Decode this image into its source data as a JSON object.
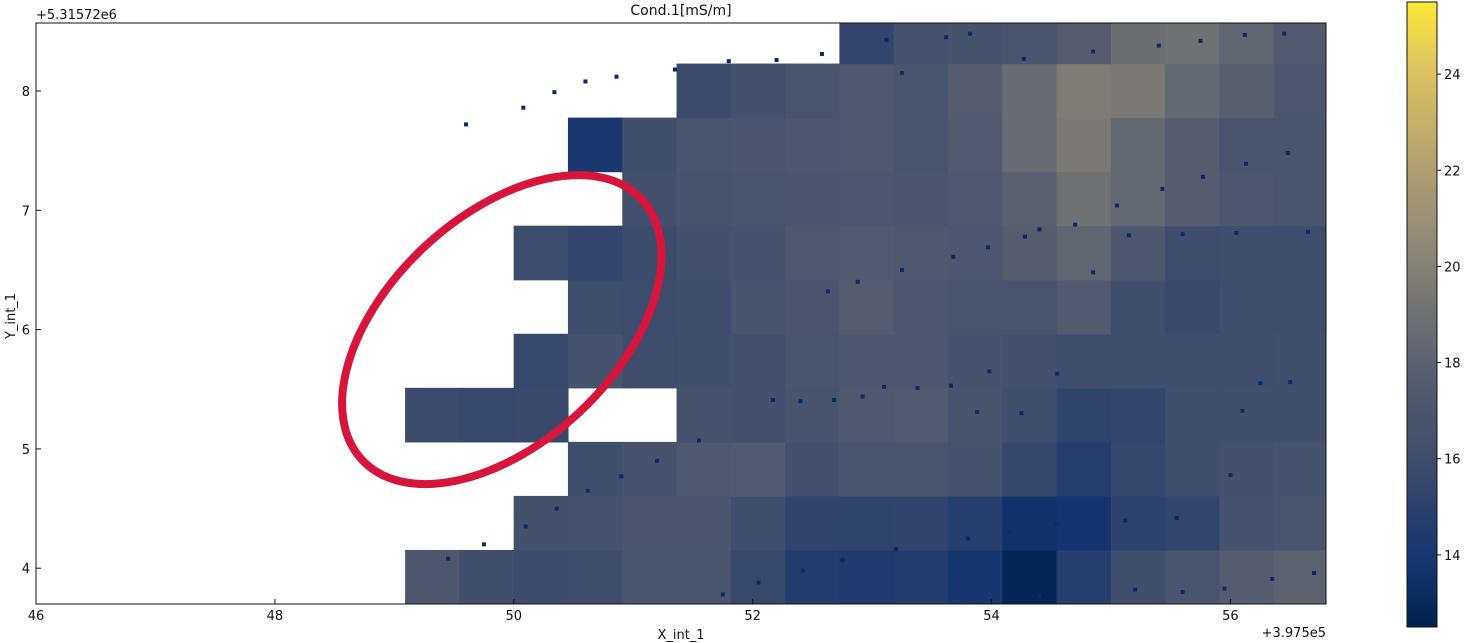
{
  "chart_data": {
    "type": "heatmap",
    "title": "Cond.1[mS/m]",
    "xlabel": "X_int_1",
    "ylabel": "Y_int_1",
    "x_offset_label": "+3.975e5",
    "y_offset_label": "+5.31572e6",
    "xlim": [
      46,
      56.8
    ],
    "ylim": [
      3.7,
      8.57
    ],
    "x_ticks": [
      "46",
      "48",
      "50",
      "52",
      "54",
      "56"
    ],
    "y_ticks": [
      "4",
      "5",
      "6",
      "7",
      "8"
    ],
    "colormap": "cividis",
    "color_range": [
      12.5,
      25.5
    ],
    "colorbar_ticks": [
      "14",
      "16",
      "18",
      "20",
      "22",
      "24"
    ],
    "cells": {
      "x_start": 49.09,
      "y_start": 3.7,
      "dx": 0.4545,
      "dy": 0.453,
      "rows_from_bottom": true,
      "values": [
        [
          17.0,
          16.2,
          15.8,
          16.0,
          16.8,
          16.8,
          15.6,
          14.6,
          14.4,
          14.6,
          14.0,
          12.8,
          14.8,
          16.2,
          16.8,
          17.6,
          18.0,
          17.2,
          17.4
        ],
        [
          null,
          null,
          16.4,
          16.6,
          16.9,
          16.9,
          16.1,
          15.3,
          15.2,
          15.3,
          14.8,
          13.6,
          13.8,
          15.1,
          15.4,
          16.6,
          16.8,
          16.4,
          16.6
        ],
        [
          null,
          null,
          null,
          16.2,
          16.6,
          17.2,
          17.4,
          16.3,
          16.8,
          16.8,
          16.6,
          15.5,
          14.7,
          15.5,
          16.1,
          16.4,
          16.6,
          16.4,
          16.7
        ],
        [
          15.8,
          15.6,
          15.7,
          null,
          null,
          16.5,
          16.4,
          16.7,
          17.2,
          17.4,
          16.7,
          16.1,
          15.2,
          15.4,
          16.2,
          16.2,
          16.2,
          15.8,
          16.4
        ],
        [
          null,
          null,
          15.6,
          16.6,
          16.0,
          16.2,
          16.4,
          16.8,
          17.1,
          17.1,
          16.6,
          16.3,
          16.1,
          16.1,
          16.1,
          16.1,
          16.2,
          16.2,
          16.2
        ],
        [
          null,
          null,
          null,
          16.0,
          15.9,
          16.0,
          16.7,
          16.9,
          17.6,
          17.1,
          16.8,
          16.8,
          17.4,
          16.1,
          15.7,
          16.0,
          16.0,
          16.0,
          16.0
        ],
        [
          null,
          null,
          15.9,
          15.4,
          15.8,
          16.4,
          16.6,
          17.2,
          17.4,
          17.2,
          17.1,
          17.7,
          18.2,
          17.1,
          16.0,
          16.1,
          16.0,
          16.0,
          16.0
        ],
        [
          null,
          null,
          null,
          null,
          16.3,
          16.7,
          16.8,
          16.9,
          17.0,
          16.9,
          17.2,
          17.9,
          19.0,
          18.4,
          17.6,
          17.0,
          16.8,
          17.2,
          17.4
        ],
        [
          null,
          null,
          null,
          14.1,
          16.2,
          16.8,
          16.9,
          17.1,
          17.2,
          16.8,
          17.4,
          18.6,
          19.5,
          18.4,
          17.6,
          16.8,
          16.8,
          17.4,
          19.2
        ],
        [
          null,
          null,
          null,
          null,
          null,
          15.8,
          16.4,
          16.8,
          17.2,
          16.8,
          17.6,
          18.6,
          19.7,
          19.5,
          18.4,
          17.8,
          17.0,
          17.0,
          17.2
        ],
        [
          null,
          null,
          null,
          null,
          null,
          null,
          null,
          null,
          15.4,
          16.5,
          16.6,
          16.8,
          17.6,
          18.8,
          19.0,
          18.2,
          17.4,
          16.8,
          16.6
        ]
      ]
    },
    "points": {
      "x": [
        49.6,
        50.08,
        50.34,
        50.6,
        50.86,
        51.35,
        51.8,
        52.2,
        52.58,
        53.12,
        53.25,
        53.62,
        53.82,
        54.27,
        54.85,
        55.4,
        55.75,
        56.12,
        56.45,
        56.48,
        56.13,
        55.77,
        55.43,
        55.05,
        54.7,
        54.28,
        53.97,
        53.68,
        53.25,
        52.88,
        52.63,
        54.4,
        55.15,
        55.6,
        56.05,
        56.65,
        54.85,
        54.55,
        53.98,
        53.66,
        53.38,
        53.1,
        52.92,
        52.68,
        52.4,
        52.17,
        54.25,
        53.88,
        56.25,
        56.5,
        56.1,
        56.0,
        55.55,
        55.12,
        54.55,
        54.15,
        53.8,
        53.2,
        52.75,
        52.42,
        52.05,
        51.75,
        51.55,
        51.2,
        50.9,
        50.62,
        50.36,
        50.1,
        49.75,
        49.45,
        56.7,
        56.35,
        55.95,
        55.6,
        55.2,
        54.4
      ],
      "y": [
        7.72,
        7.86,
        7.99,
        8.08,
        8.12,
        8.18,
        8.25,
        8.26,
        8.31,
        8.43,
        8.15,
        8.45,
        8.48,
        8.27,
        8.33,
        8.38,
        8.42,
        8.47,
        8.48,
        7.48,
        7.39,
        7.28,
        7.18,
        7.04,
        6.88,
        6.78,
        6.69,
        6.61,
        6.5,
        6.4,
        6.32,
        6.84,
        6.79,
        6.8,
        6.81,
        6.82,
        6.48,
        5.63,
        5.65,
        5.53,
        5.51,
        5.52,
        5.44,
        5.41,
        5.4,
        5.41,
        5.3,
        5.31,
        5.55,
        5.56,
        5.32,
        4.78,
        4.42,
        4.4,
        4.37,
        4.3,
        4.25,
        4.16,
        4.07,
        3.98,
        3.88,
        3.78,
        5.07,
        4.9,
        4.77,
        4.65,
        4.5,
        4.35,
        4.2,
        4.08,
        3.96,
        3.91,
        3.83,
        3.8,
        3.82,
        3.77
      ]
    },
    "annotation": {
      "type": "ellipse",
      "color": "#d7153a",
      "cx": 49.9,
      "cy": 6.0,
      "rx": 1.6,
      "ry": 0.95,
      "rotation_deg": -43
    }
  }
}
